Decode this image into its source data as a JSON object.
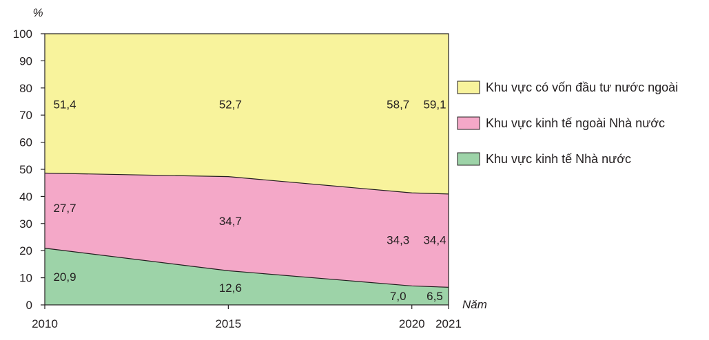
{
  "chart_data": {
    "type": "area",
    "stacked": true,
    "percent_stacked": true,
    "x": [
      2010,
      2015,
      2020,
      2021
    ],
    "series": [
      {
        "name": "Khu vực kinh tế Nhà nước",
        "values": [
          20.9,
          12.6,
          7.0,
          6.5
        ],
        "labels": [
          "20,9",
          "12,6",
          "7,0",
          "6,5"
        ],
        "color": "#9dd3a8"
      },
      {
        "name": "Khu vực kinh tế ngoài Nhà nước",
        "values": [
          27.7,
          34.7,
          34.3,
          34.4
        ],
        "labels": [
          "27,7",
          "34,7",
          "34,3",
          "34,4"
        ],
        "color": "#f4a8c8"
      },
      {
        "name": "Khu vực có vốn đầu tư nước ngoài",
        "values": [
          51.4,
          52.7,
          58.7,
          59.1
        ],
        "labels": [
          "51,4",
          "52,7",
          "58,7",
          "59,1"
        ],
        "color": "#f8f39c"
      }
    ],
    "ylabel": "%",
    "xlabel": "Năm",
    "ylim": [
      0,
      100
    ],
    "yticks": [
      0,
      10,
      20,
      30,
      40,
      50,
      60,
      70,
      80,
      90,
      100
    ],
    "xticks": [
      2010,
      2015,
      2020,
      2021
    ],
    "legend_position": "right",
    "legend_order": [
      "Khu vực có vốn đầu tư nước ngoài",
      "Khu vực kinh tế ngoài Nhà nước",
      "Khu vực kinh tế Nhà nước"
    ],
    "grid": false
  }
}
